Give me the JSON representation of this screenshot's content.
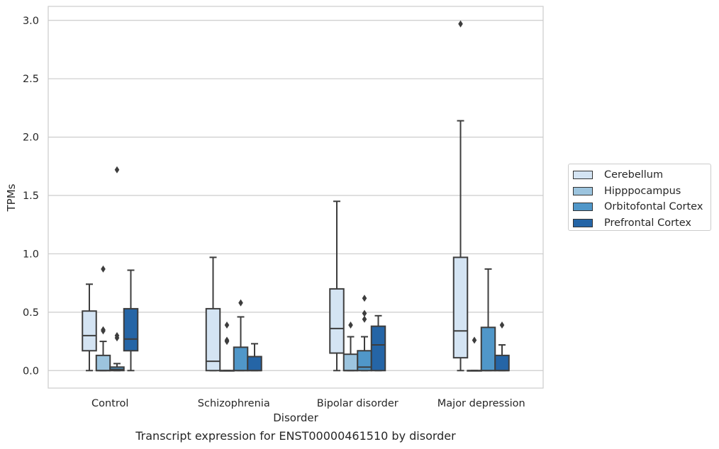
{
  "caption": "Transcript expression for ENST00000461510 by disorder",
  "chart_data": {
    "type": "boxplot",
    "xlabel": "Disorder",
    "ylabel": "TPMs",
    "ylim": [
      -0.15,
      3.12
    ],
    "yticks": [
      "0.0",
      "0.5",
      "1.0",
      "1.5",
      "2.0",
      "2.5",
      "3.0"
    ],
    "grid": true,
    "legend_position": "right",
    "categories": [
      "Control",
      "Schizophrenia",
      "Bipolar disorder",
      "Major depression"
    ],
    "series": [
      {
        "name": "Cerebellum",
        "color": "#d4e4f3",
        "boxes": [
          {
            "whislo": 0.0,
            "q1": 0.17,
            "med": 0.3,
            "q3": 0.51,
            "whishi": 0.74,
            "fliers": []
          },
          {
            "whislo": 0.0,
            "q1": 0.0,
            "med": 0.08,
            "q3": 0.53,
            "whishi": 0.97,
            "fliers": []
          },
          {
            "whislo": 0.0,
            "q1": 0.15,
            "med": 0.36,
            "q3": 0.7,
            "whishi": 1.45,
            "fliers": []
          },
          {
            "whislo": 0.0,
            "q1": 0.11,
            "med": 0.34,
            "q3": 0.97,
            "whishi": 2.14,
            "fliers": [
              2.97
            ]
          }
        ]
      },
      {
        "name": "Hipppocampus",
        "color": "#9cc4de",
        "boxes": [
          {
            "whislo": 0.0,
            "q1": 0.0,
            "med": 0.0,
            "q3": 0.13,
            "whishi": 0.25,
            "fliers": [
              0.87,
              0.35,
              0.34
            ]
          },
          {
            "whislo": 0.0,
            "q1": 0.0,
            "med": 0.0,
            "q3": 0.0,
            "whishi": 0.0,
            "fliers": [
              0.39,
              0.26,
              0.25
            ]
          },
          {
            "whislo": 0.0,
            "q1": 0.0,
            "med": 0.0,
            "q3": 0.14,
            "whishi": 0.29,
            "fliers": [
              0.39
            ]
          },
          {
            "whislo": 0.0,
            "q1": 0.0,
            "med": 0.0,
            "q3": 0.0,
            "whishi": 0.0,
            "fliers": [
              0.26
            ]
          }
        ]
      },
      {
        "name": "Orbitofontal Cortex",
        "color": "#5097c9",
        "boxes": [
          {
            "whislo": 0.0,
            "q1": 0.0,
            "med": 0.01,
            "q3": 0.03,
            "whishi": 0.06,
            "fliers": [
              1.72,
              0.3,
              0.28
            ]
          },
          {
            "whislo": 0.0,
            "q1": 0.0,
            "med": 0.0,
            "q3": 0.2,
            "whishi": 0.46,
            "fliers": [
              0.58
            ]
          },
          {
            "whislo": 0.0,
            "q1": 0.0,
            "med": 0.03,
            "q3": 0.17,
            "whishi": 0.29,
            "fliers": [
              0.62,
              0.49,
              0.44
            ]
          },
          {
            "whislo": 0.0,
            "q1": 0.0,
            "med": 0.0,
            "q3": 0.37,
            "whishi": 0.87,
            "fliers": []
          }
        ]
      },
      {
        "name": "Prefrontal Cortex",
        "color": "#2565a6",
        "boxes": [
          {
            "whislo": 0.0,
            "q1": 0.17,
            "med": 0.27,
            "q3": 0.53,
            "whishi": 0.86,
            "fliers": []
          },
          {
            "whislo": 0.0,
            "q1": 0.0,
            "med": 0.0,
            "q3": 0.12,
            "whishi": 0.23,
            "fliers": []
          },
          {
            "whislo": 0.0,
            "q1": 0.0,
            "med": 0.22,
            "q3": 0.38,
            "whishi": 0.47,
            "fliers": []
          },
          {
            "whislo": 0.0,
            "q1": 0.0,
            "med": 0.0,
            "q3": 0.13,
            "whishi": 0.22,
            "fliers": [
              0.39
            ]
          }
        ]
      }
    ]
  }
}
